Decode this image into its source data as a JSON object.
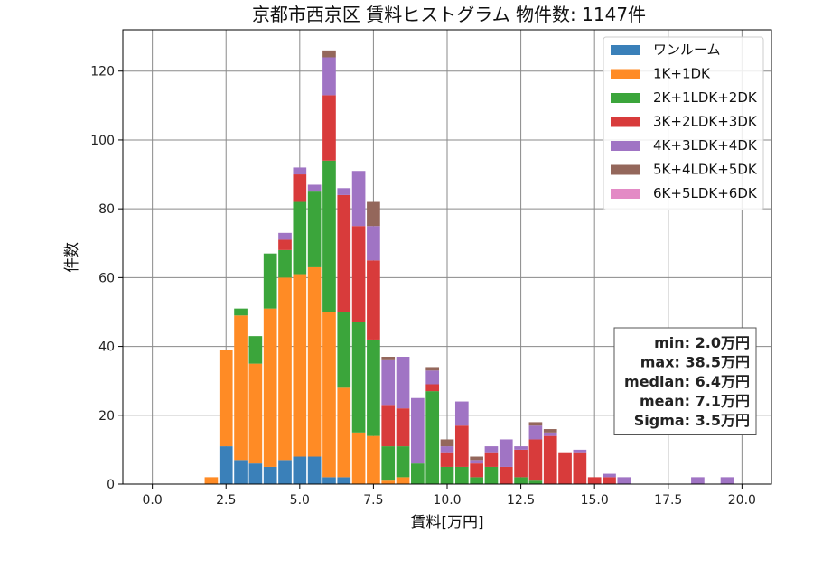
{
  "chart_data": {
    "type": "bar",
    "stacked": true,
    "title": "京都市西京区 賃料ヒストグラム  物件数: 1147件",
    "xlabel": "賃料[万円]",
    "ylabel": "件数",
    "xlim": [
      -1.0,
      21.0
    ],
    "ylim": [
      0,
      132
    ],
    "xticks": [
      0.0,
      2.5,
      5.0,
      7.5,
      10.0,
      12.5,
      15.0,
      17.5,
      20.0
    ],
    "xtick_labels": [
      "0.0",
      "2.5",
      "5.0",
      "7.5",
      "10.0",
      "12.5",
      "15.0",
      "17.5",
      "20.0"
    ],
    "yticks": [
      0,
      20,
      40,
      60,
      80,
      100,
      120
    ],
    "ytick_labels": [
      "0",
      "20",
      "40",
      "60",
      "80",
      "100",
      "120"
    ],
    "grid": true,
    "legend_position": "top-right",
    "bin_width": 0.5,
    "x": [
      2.0,
      2.5,
      3.0,
      3.5,
      4.0,
      4.5,
      5.0,
      5.5,
      6.0,
      6.5,
      7.0,
      7.5,
      8.0,
      8.5,
      9.0,
      9.5,
      10.0,
      10.5,
      11.0,
      11.5,
      12.0,
      12.5,
      13.0,
      13.5,
      14.0,
      14.5,
      15.0,
      15.5,
      16.0,
      18.5,
      19.5
    ],
    "series": [
      {
        "name": "ワンルーム",
        "color": "#3a80b9",
        "values": [
          0,
          11,
          7,
          6,
          5,
          7,
          8,
          8,
          2,
          2,
          0,
          0,
          0,
          0,
          0,
          0,
          0,
          0,
          0,
          0,
          0,
          0,
          0,
          0,
          0,
          0,
          0,
          0,
          0,
          0,
          0
        ]
      },
      {
        "name": "1K+1DK",
        "color": "#ff8b25",
        "values": [
          2,
          28,
          42,
          29,
          46,
          53,
          53,
          55,
          48,
          26,
          15,
          14,
          1,
          2,
          0,
          0,
          0,
          0,
          0,
          0,
          0,
          0,
          0,
          0,
          0,
          0,
          0,
          0,
          0,
          0,
          0
        ]
      },
      {
        "name": "2K+1LDK+2DK",
        "color": "#3ba53b",
        "values": [
          0,
          0,
          2,
          8,
          16,
          8,
          21,
          22,
          44,
          22,
          32,
          28,
          10,
          9,
          6,
          27,
          5,
          5,
          2,
          5,
          0,
          2,
          1,
          0,
          0,
          0,
          0,
          0,
          0,
          0,
          0
        ]
      },
      {
        "name": "3K+2LDK+3DK",
        "color": "#d83b3b",
        "values": [
          0,
          0,
          0,
          0,
          0,
          3,
          8,
          0,
          19,
          34,
          28,
          23,
          12,
          11,
          0,
          2,
          4,
          12,
          4,
          4,
          5,
          8,
          12,
          14,
          9,
          9,
          2,
          2,
          0,
          0,
          0
        ]
      },
      {
        "name": "4K+3LDK+4DK",
        "color": "#a074c4",
        "values": [
          0,
          0,
          0,
          0,
          0,
          2,
          2,
          2,
          11,
          2,
          16,
          10,
          13,
          15,
          19,
          4,
          2,
          7,
          1,
          2,
          8,
          1,
          4,
          1,
          0,
          1,
          0,
          1,
          2,
          2,
          2
        ]
      },
      {
        "name": "5K+4LDK+5DK",
        "color": "#94675b",
        "values": [
          0,
          0,
          0,
          0,
          0,
          0,
          0,
          0,
          2,
          0,
          0,
          7,
          1,
          0,
          0,
          1,
          2,
          0,
          1,
          0,
          0,
          0,
          1,
          1,
          0,
          0,
          0,
          0,
          0,
          0,
          0
        ]
      },
      {
        "name": "6K+5LDK+6DK",
        "color": "#e38ac5",
        "values": [
          0,
          0,
          0,
          0,
          0,
          0,
          0,
          0,
          0,
          0,
          0,
          0,
          0,
          0,
          0,
          0,
          0,
          0,
          0,
          0,
          0,
          0,
          0,
          0,
          0,
          0,
          0,
          0,
          0,
          0,
          0
        ]
      }
    ],
    "stats_box": {
      "lines": [
        "min: 2.0万円",
        "max: 38.5万円",
        "median: 6.4万円",
        "mean: 7.1万円",
        "Sigma: 3.5万円"
      ],
      "position": "right"
    }
  }
}
